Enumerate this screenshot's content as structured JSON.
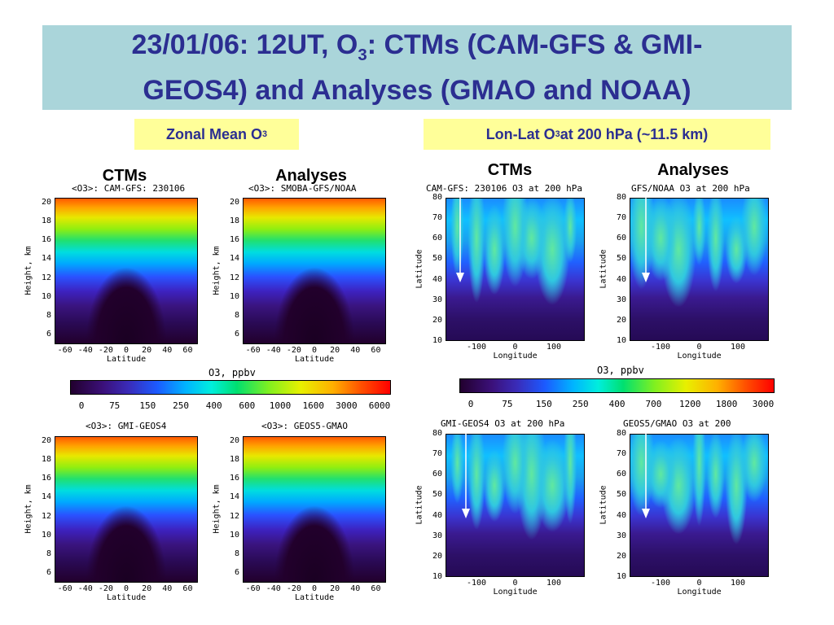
{
  "title": {
    "line1_pre": "23/01/06: 12UT,  O",
    "line1_sub": "3",
    "line1_post": ": CTMs (CAM-GFS & GMI-",
    "line2": "GEOS4) and  Analyses (GMAO and NOAA)"
  },
  "labels": {
    "zonal_pre": "Zonal Mean O",
    "zonal_sub": "3",
    "lonlat_pre": "Lon-Lat O",
    "lonlat_sub": "3",
    "lonlat_post": " at 200 hPa (~11.5 km)",
    "ctms_left": "CTMs",
    "analyses_left": "Analyses",
    "ctms_right": "CTMs",
    "analyses_right": "Analyses"
  },
  "colors": {
    "title_bg": "#aad5da",
    "title_text": "#2b2e91",
    "label_bg": "#ffff99"
  },
  "chart_data": [
    {
      "type": "heatmap",
      "title": "<O3>: CAM-GFS: 230106",
      "xlabel": "Latitude",
      "ylabel": "Height, km",
      "xticks": [
        "-60",
        "-40",
        "-20",
        "0",
        "20",
        "40",
        "60"
      ],
      "yticks": [
        "20",
        "18",
        "16",
        "14",
        "12",
        "10",
        "8",
        "6"
      ],
      "xlim": [
        -70,
        70
      ],
      "ylim": [
        5,
        20.5
      ]
    },
    {
      "type": "heatmap",
      "title": "<O3>:  SMOBA-GFS/NOAA",
      "xlabel": "Latitude",
      "ylabel": "Height, km",
      "xticks": [
        "-60",
        "-40",
        "-20",
        "0",
        "20",
        "40",
        "60"
      ],
      "yticks": [
        "20",
        "18",
        "16",
        "14",
        "12",
        "10",
        "8",
        "6"
      ],
      "xlim": [
        -70,
        70
      ],
      "ylim": [
        5,
        20.5
      ]
    },
    {
      "type": "heatmap",
      "title": "<O3>: GMI-GEOS4",
      "xlabel": "Latitude",
      "ylabel": "Height, km",
      "xticks": [
        "-60",
        "-40",
        "-20",
        "0",
        "20",
        "40",
        "60"
      ],
      "yticks": [
        "20",
        "18",
        "16",
        "14",
        "12",
        "10",
        "8",
        "6"
      ],
      "xlim": [
        -70,
        70
      ],
      "ylim": [
        5,
        20.5
      ]
    },
    {
      "type": "heatmap",
      "title": "<O3>:  GEOS5-GMAO",
      "xlabel": "Latitude",
      "ylabel": "Height, km",
      "xticks": [
        "-60",
        "-40",
        "-20",
        "0",
        "20",
        "40",
        "60"
      ],
      "yticks": [
        "20",
        "18",
        "16",
        "14",
        "12",
        "10",
        "8",
        "6"
      ],
      "xlim": [
        -70,
        70
      ],
      "ylim": [
        5,
        20.5
      ]
    },
    {
      "type": "heatmap",
      "title": "CAM-GFS: 230106  O3 at   200  hPa",
      "xlabel": "Longitude",
      "ylabel": "Latitude",
      "xticks": [
        "-100",
        "0",
        "100"
      ],
      "yticks": [
        "80",
        "70",
        "60",
        "50",
        "40",
        "30",
        "20",
        "10"
      ],
      "xlim": [
        -180,
        180
      ],
      "ylim": [
        10,
        80
      ]
    },
    {
      "type": "heatmap",
      "title": "GFS/NOAA    O3 at   200  hPa",
      "xlabel": "Longitude",
      "ylabel": "Latitude",
      "xticks": [
        "-100",
        "0",
        "100"
      ],
      "yticks": [
        "80",
        "70",
        "60",
        "50",
        "40",
        "30",
        "20",
        "10"
      ],
      "xlim": [
        -180,
        180
      ],
      "ylim": [
        10,
        80
      ]
    },
    {
      "type": "heatmap",
      "title": "GMI-GEOS4  O3 at   200  hPa",
      "xlabel": "Longitude",
      "ylabel": "Latitude",
      "xticks": [
        "-100",
        "0",
        "100"
      ],
      "yticks": [
        "80",
        "70",
        "60",
        "50",
        "40",
        "30",
        "20",
        "10"
      ],
      "xlim": [
        -180,
        180
      ],
      "ylim": [
        10,
        80
      ]
    },
    {
      "type": "heatmap",
      "title": "GEOS5/GMAO    O3 at   200",
      "xlabel": "Longitude",
      "ylabel": "Latitude",
      "xticks": [
        "-100",
        "0",
        "100"
      ],
      "yticks": [
        "80",
        "70",
        "60",
        "50",
        "40",
        "30",
        "20",
        "10"
      ],
      "xlim": [
        -180,
        180
      ],
      "ylim": [
        10,
        80
      ]
    }
  ],
  "colorbars": [
    {
      "title": "O3, ppbv",
      "ticks": [
        "0",
        "75",
        "150",
        "250",
        "400",
        "600",
        "1000",
        "1600",
        "3000",
        "6000"
      ]
    },
    {
      "title": "O3, ppbv",
      "ticks": [
        "0",
        "75",
        "150",
        "250",
        "400",
        "700",
        "1200",
        "1800",
        "3000"
      ]
    }
  ]
}
